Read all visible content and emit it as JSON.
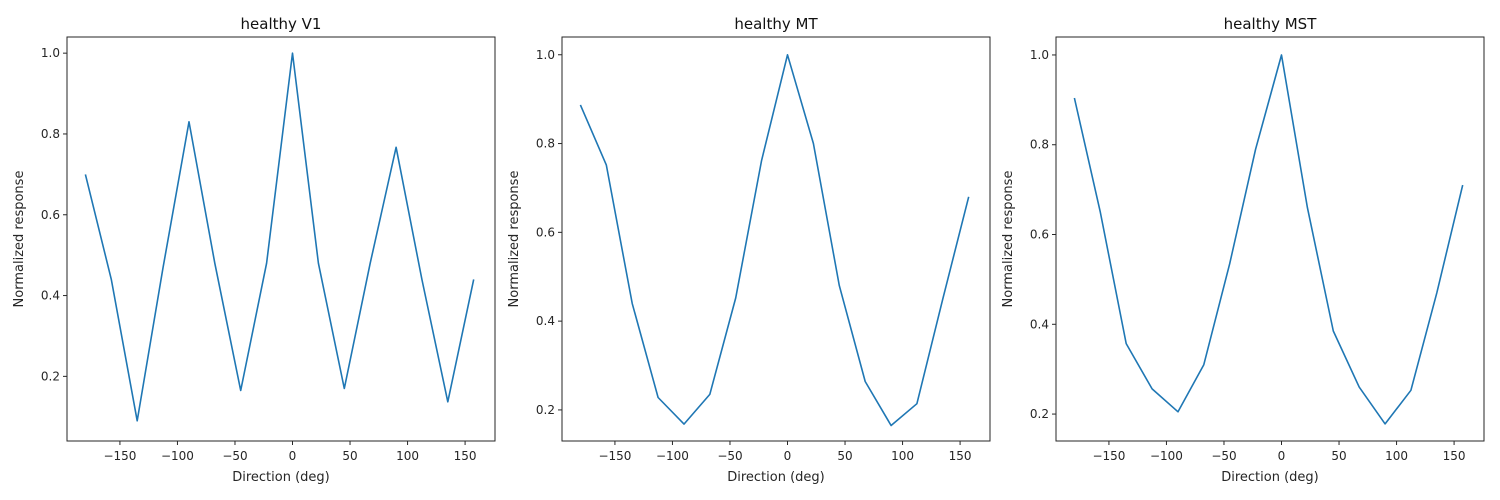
{
  "chart_data": [
    {
      "type": "line",
      "title": "healthy V1",
      "xlabel": "Direction (deg)",
      "ylabel": "Normalized response",
      "xlim": [
        -196,
        176
      ],
      "ylim": [
        0.04,
        1.04
      ],
      "xticks": [
        -150,
        -100,
        -50,
        0,
        50,
        100,
        150
      ],
      "xtick_labels": [
        "−150",
        "−100",
        "−50",
        "0",
        "50",
        "100",
        "150"
      ],
      "yticks": [
        0.2,
        0.4,
        0.6,
        0.8,
        1.0
      ],
      "ytick_labels": [
        "0.2",
        "0.4",
        "0.6",
        "0.8",
        "1.0"
      ],
      "grid": false,
      "series": [
        {
          "color": "#1f77b4",
          "x": [
            -180,
            -157.5,
            -135,
            -112.5,
            -90,
            -67.5,
            -45,
            -22.5,
            0,
            22.5,
            45,
            67.5,
            90,
            112.5,
            135,
            157.5
          ],
          "y": [
            0.7,
            0.44,
            0.09,
            0.47,
            0.83,
            0.48,
            0.165,
            0.48,
            1.0,
            0.48,
            0.17,
            0.48,
            0.767,
            0.44,
            0.137,
            0.44
          ]
        }
      ]
    },
    {
      "type": "line",
      "title": "healthy MT",
      "xlabel": "Direction (deg)",
      "ylabel": "Normalized response",
      "xlim": [
        -196,
        176
      ],
      "ylim": [
        0.13,
        1.04
      ],
      "xticks": [
        -150,
        -100,
        -50,
        0,
        50,
        100,
        150
      ],
      "xtick_labels": [
        "−150",
        "−100",
        "−50",
        "0",
        "50",
        "100",
        "150"
      ],
      "yticks": [
        0.2,
        0.4,
        0.6,
        0.8,
        1.0
      ],
      "ytick_labels": [
        "0.2",
        "0.4",
        "0.6",
        "0.8",
        "1.0"
      ],
      "grid": false,
      "series": [
        {
          "color": "#1f77b4",
          "x": [
            -180,
            -157.5,
            -135,
            -112.5,
            -90,
            -67.5,
            -45,
            -22.5,
            0,
            22.5,
            45,
            67.5,
            90,
            112.5,
            135,
            157.5
          ],
          "y": [
            0.887,
            0.752,
            0.44,
            0.228,
            0.168,
            0.235,
            0.452,
            0.762,
            1.0,
            0.8,
            0.48,
            0.264,
            0.165,
            0.214,
            0.45,
            0.68
          ]
        }
      ]
    },
    {
      "type": "line",
      "title": "healthy MST",
      "xlabel": "Direction (deg)",
      "ylabel": "Normalized response",
      "xlim": [
        -196,
        176
      ],
      "ylim": [
        0.14,
        1.04
      ],
      "xticks": [
        -150,
        -100,
        -50,
        0,
        50,
        100,
        150
      ],
      "xtick_labels": [
        "−150",
        "−100",
        "−50",
        "0",
        "50",
        "100",
        "150"
      ],
      "yticks": [
        0.2,
        0.4,
        0.6,
        0.8,
        1.0
      ],
      "ytick_labels": [
        "0.2",
        "0.4",
        "0.6",
        "0.8",
        "1.0"
      ],
      "grid": false,
      "series": [
        {
          "color": "#1f77b4",
          "x": [
            -180,
            -157.5,
            -135,
            -112.5,
            -90,
            -67.5,
            -45,
            -22.5,
            0,
            22.5,
            45,
            67.5,
            90,
            112.5,
            135,
            157.5
          ],
          "y": [
            0.904,
            0.65,
            0.357,
            0.256,
            0.205,
            0.31,
            0.535,
            0.79,
            1.0,
            0.66,
            0.385,
            0.26,
            0.178,
            0.253,
            0.47,
            0.71
          ]
        }
      ]
    }
  ]
}
